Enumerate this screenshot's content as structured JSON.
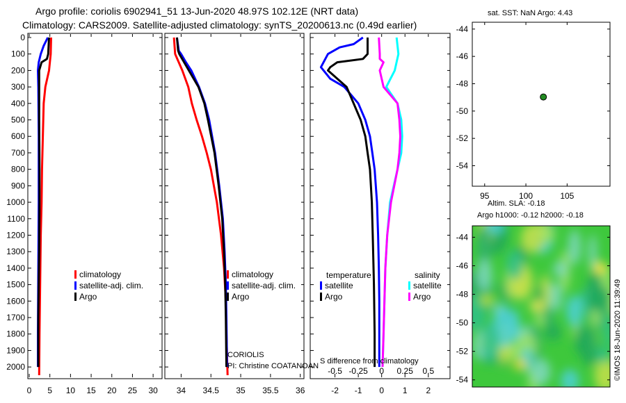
{
  "header": {
    "line1": "Argo profile: coriolis 6902941_51 13-Jun-2020 48.97S 102.12E (NRT data)",
    "line2": "Climatology: CARS2009. Satellite-adjusted climatology: synTS_20200613.nc (0.49d earlier)"
  },
  "credits": {
    "institution": "CORIOLIS",
    "pi": "PI: Christine COATANOAN"
  },
  "watermark": "©IMOS 18-Jun-2020 11:39:49",
  "colors": {
    "red": "#ff0000",
    "blue": "#0000ff",
    "black": "#000000",
    "cyan": "#00ffff",
    "magenta": "#ff00ff",
    "green": "#228b22"
  },
  "chart_data": [
    {
      "type": "line",
      "id": "temperature_profiles",
      "xlim": [
        0,
        32
      ],
      "ylim": [
        0,
        2050
      ],
      "xticks": [
        0,
        5,
        10,
        15,
        20,
        25,
        30
      ],
      "yticks": [
        0,
        100,
        200,
        300,
        400,
        500,
        600,
        700,
        800,
        900,
        1000,
        1100,
        1200,
        1300,
        1400,
        1500,
        1600,
        1700,
        1800,
        1900,
        2000
      ],
      "series": [
        {
          "name": "climatology",
          "color": "red",
          "depth": [
            0,
            100,
            200,
            300,
            400,
            600,
            800,
            1000,
            1200,
            1400,
            1600,
            1800,
            2050
          ],
          "values": [
            5.3,
            5.2,
            4.8,
            3.9,
            3.5,
            3.3,
            3.1,
            3.0,
            2.8,
            2.7,
            2.6,
            2.5,
            2.4
          ]
        },
        {
          "name": "satellite-adj. clim.",
          "color": "blue",
          "depth": [
            0,
            50,
            100,
            150,
            200,
            300,
            600,
            1000,
            1400,
            1800,
            2000
          ],
          "values": [
            4.5,
            3.5,
            2.8,
            2.3,
            2.1,
            2.2,
            2.3,
            2.3,
            2.2,
            2.1,
            2.1
          ]
        },
        {
          "name": "Argo",
          "color": "black",
          "depth": [
            0,
            100,
            130,
            150,
            200,
            300,
            500,
            800,
            1000,
            1300,
            1500,
            1700,
            1900,
            2000
          ],
          "values": [
            4.8,
            4.6,
            4.3,
            3.0,
            2.4,
            2.4,
            2.4,
            2.5,
            2.5,
            2.4,
            2.3,
            2.2,
            2.2,
            2.2
          ]
        }
      ],
      "legend": [
        "climatology",
        "satellite-adj. clim.",
        "Argo"
      ]
    },
    {
      "type": "line",
      "id": "salinity_profiles",
      "xlim": [
        33.75,
        36.05
      ],
      "ylim": [
        0,
        2050
      ],
      "xticks": [
        34,
        34.5,
        35,
        35.5,
        36
      ],
      "series": [
        {
          "name": "climatology",
          "color": "red",
          "depth": [
            0,
            100,
            200,
            300,
            400,
            500,
            600,
            700,
            800,
            1000,
            1200,
            1400,
            1600,
            1800,
            2050
          ],
          "values": [
            33.88,
            33.9,
            34.02,
            34.12,
            34.18,
            34.26,
            34.35,
            34.43,
            34.5,
            34.6,
            34.67,
            34.72,
            34.75,
            34.76,
            34.78
          ]
        },
        {
          "name": "satellite-adj. clim.",
          "color": "blue",
          "depth": [
            0,
            80,
            100,
            150,
            200,
            300,
            400,
            500,
            700,
            900,
            1100,
            1300,
            1500,
            1700,
            2000
          ],
          "values": [
            33.93,
            33.96,
            34.0,
            34.08,
            34.17,
            34.3,
            34.4,
            34.47,
            34.57,
            34.64,
            34.7,
            34.73,
            34.75,
            34.76,
            34.77
          ]
        },
        {
          "name": "Argo",
          "color": "black",
          "depth": [
            0,
            80,
            100,
            150,
            200,
            300,
            400,
            500,
            700,
            900,
            1100,
            1300,
            1500,
            1700,
            2000
          ],
          "values": [
            33.93,
            33.95,
            33.97,
            34.05,
            34.13,
            34.29,
            34.39,
            34.45,
            34.56,
            34.63,
            34.69,
            34.72,
            34.74,
            34.75,
            34.76
          ]
        }
      ],
      "legend": [
        "climatology",
        "satellite-adj. clim.",
        "Argo"
      ]
    },
    {
      "type": "line",
      "id": "difference_from_climatology",
      "xlim": [
        -3.0,
        2.9
      ],
      "ylim": [
        0,
        2050
      ],
      "xticks": [
        -2,
        -1,
        0,
        1,
        2
      ],
      "xticks_secondary": [
        -0.5,
        -0.25,
        0,
        0.25,
        0.5
      ],
      "series": [
        {
          "name": "temperature satellite",
          "color": "blue",
          "depth": [
            0,
            40,
            60,
            100,
            180,
            250,
            300,
            400,
            500,
            600,
            700,
            800,
            900,
            1000,
            1200,
            1400,
            1600,
            1800,
            2000
          ],
          "values": [
            -0.8,
            -1.2,
            -1.8,
            -2.3,
            -2.6,
            -2.2,
            -1.6,
            -1.0,
            -0.7,
            -0.5,
            -0.4,
            -0.3,
            -0.25,
            -0.2,
            -0.15,
            -0.12,
            -0.1,
            -0.1,
            -0.1
          ]
        },
        {
          "name": "temperature Argo",
          "color": "black",
          "depth": [
            0,
            60,
            100,
            130,
            150,
            180,
            200,
            300,
            500,
            600,
            700,
            800,
            1000,
            1200,
            1500,
            1800,
            2000
          ],
          "values": [
            -0.6,
            -0.6,
            -0.6,
            -0.8,
            -1.9,
            -2.2,
            -2.3,
            -1.5,
            -0.9,
            -0.7,
            -0.6,
            -0.5,
            -0.42,
            -0.38,
            -0.33,
            -0.3,
            -0.3
          ]
        },
        {
          "name": "salinity satellite",
          "color": "cyan",
          "depth": [
            0,
            100,
            200,
            300,
            400,
            500,
            600,
            700,
            800,
            1000,
            1200,
            1400,
            1600,
            1800,
            2000
          ],
          "values": [
            0.16,
            0.18,
            0.14,
            0.05,
            0.17,
            0.21,
            0.22,
            0.21,
            0.17,
            0.09,
            0.06,
            0.04,
            0.03,
            0.02,
            0.01
          ]
        },
        {
          "name": "salinity Argo",
          "color": "magenta",
          "depth": [
            0,
            100,
            130,
            150,
            200,
            300,
            400,
            500,
            600,
            700,
            800,
            1000,
            1200,
            1400,
            1600,
            1800,
            2000
          ],
          "values": [
            -0.03,
            -0.02,
            -0.02,
            0.02,
            -0.02,
            0.02,
            0.17,
            0.19,
            0.2,
            0.19,
            0.17,
            0.1,
            0.06,
            0.04,
            0.03,
            0.02,
            0.01
          ]
        }
      ],
      "legend_left_title": "temperature",
      "legend_right_title": "salinity",
      "legend_left": [
        "satellite",
        "Argo"
      ],
      "legend_right": [
        "satellite",
        "Argo"
      ],
      "xlabel": "S difference from climatology"
    },
    {
      "type": "scatter",
      "id": "location_map",
      "title": "sat. SST: NaN Argo: 4.43",
      "xlim": [
        93.5,
        110.2
      ],
      "ylim": [
        -55.5,
        -43.5
      ],
      "xticks": [
        95,
        100,
        105
      ],
      "yticks": [
        -44,
        -46,
        -48,
        -50,
        -52,
        -54
      ],
      "points": [
        {
          "x": 102.12,
          "y": -48.97
        }
      ]
    },
    {
      "type": "heatmap",
      "id": "altimetry_map",
      "title_line1": "Altim. SLA: -0.18",
      "title_line2": "Argo h1000: -0.12 h2000: -0.18",
      "ylim": [
        -54.5,
        -43.2
      ],
      "yticks": [
        -44,
        -46,
        -48,
        -50,
        -52,
        -54
      ]
    }
  ]
}
